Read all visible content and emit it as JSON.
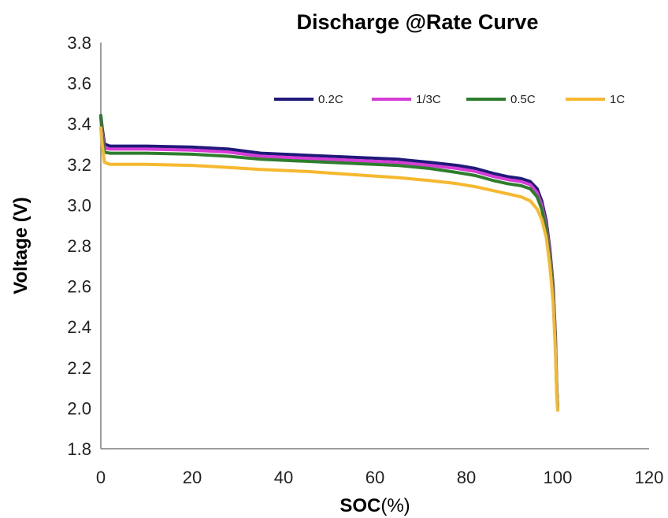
{
  "chart_data": {
    "type": "line",
    "title": "Discharge @Rate Curve",
    "xlabel_bold": "SOC",
    "xlabel_rest": "(%)",
    "ylabel": "Voltage (V)",
    "xlim": [
      0,
      120
    ],
    "ylim": [
      1.8,
      3.8
    ],
    "xticks": [
      0,
      20,
      40,
      60,
      80,
      100,
      120
    ],
    "yticks": [
      "1.8",
      "2.0",
      "2.2",
      "2.4",
      "2.6",
      "2.8",
      "3.0",
      "3.2",
      "3.4",
      "3.6",
      "3.8"
    ],
    "grid": false,
    "legend_position": "top-right",
    "series": [
      {
        "name": "0.2C",
        "color": "#1f1a7a",
        "points": [
          [
            0,
            3.44
          ],
          [
            0.3,
            3.38
          ],
          [
            0.8,
            3.3
          ],
          [
            2,
            3.29
          ],
          [
            10,
            3.29
          ],
          [
            20,
            3.285
          ],
          [
            28,
            3.275
          ],
          [
            35,
            3.255
          ],
          [
            45,
            3.245
          ],
          [
            55,
            3.235
          ],
          [
            65,
            3.225
          ],
          [
            72,
            3.21
          ],
          [
            78,
            3.195
          ],
          [
            82,
            3.18
          ],
          [
            86,
            3.155
          ],
          [
            89,
            3.14
          ],
          [
            92,
            3.13
          ],
          [
            94,
            3.115
          ],
          [
            95.5,
            3.08
          ],
          [
            96.5,
            3.02
          ],
          [
            97.5,
            2.92
          ],
          [
            98.3,
            2.78
          ],
          [
            99,
            2.6
          ],
          [
            99.5,
            2.35
          ],
          [
            99.8,
            2.1
          ],
          [
            100,
            2.0
          ]
        ]
      },
      {
        "name": "1/3C",
        "color": "#d63dd6",
        "points": [
          [
            0,
            3.43
          ],
          [
            0.3,
            3.36
          ],
          [
            0.8,
            3.28
          ],
          [
            2,
            3.275
          ],
          [
            10,
            3.275
          ],
          [
            20,
            3.27
          ],
          [
            28,
            3.26
          ],
          [
            35,
            3.24
          ],
          [
            45,
            3.23
          ],
          [
            55,
            3.22
          ],
          [
            65,
            3.21
          ],
          [
            72,
            3.195
          ],
          [
            78,
            3.18
          ],
          [
            82,
            3.165
          ],
          [
            86,
            3.14
          ],
          [
            89,
            3.125
          ],
          [
            92,
            3.115
          ],
          [
            94,
            3.1
          ],
          [
            95.5,
            3.06
          ],
          [
            96.5,
            3.0
          ],
          [
            97.5,
            2.9
          ],
          [
            98.3,
            2.76
          ],
          [
            99,
            2.58
          ],
          [
            99.5,
            2.33
          ],
          [
            99.8,
            2.09
          ],
          [
            100,
            2.0
          ]
        ]
      },
      {
        "name": "0.5C",
        "color": "#2e7d2e",
        "points": [
          [
            0,
            3.44
          ],
          [
            0.3,
            3.34
          ],
          [
            0.8,
            3.26
          ],
          [
            2,
            3.255
          ],
          [
            10,
            3.255
          ],
          [
            20,
            3.25
          ],
          [
            28,
            3.24
          ],
          [
            35,
            3.225
          ],
          [
            45,
            3.215
          ],
          [
            55,
            3.205
          ],
          [
            65,
            3.195
          ],
          [
            72,
            3.18
          ],
          [
            78,
            3.16
          ],
          [
            82,
            3.145
          ],
          [
            86,
            3.12
          ],
          [
            89,
            3.105
          ],
          [
            92,
            3.095
          ],
          [
            94,
            3.08
          ],
          [
            95.5,
            3.04
          ],
          [
            96.5,
            2.98
          ],
          [
            97.5,
            2.88
          ],
          [
            98.3,
            2.74
          ],
          [
            99,
            2.56
          ],
          [
            99.5,
            2.31
          ],
          [
            99.8,
            2.08
          ],
          [
            100,
            2.0
          ]
        ]
      },
      {
        "name": "1C",
        "color": "#f5b82e",
        "points": [
          [
            0,
            3.38
          ],
          [
            0.3,
            3.3
          ],
          [
            0.8,
            3.21
          ],
          [
            2,
            3.2
          ],
          [
            10,
            3.2
          ],
          [
            20,
            3.195
          ],
          [
            28,
            3.185
          ],
          [
            35,
            3.175
          ],
          [
            45,
            3.165
          ],
          [
            55,
            3.15
          ],
          [
            65,
            3.135
          ],
          [
            72,
            3.12
          ],
          [
            78,
            3.105
          ],
          [
            82,
            3.09
          ],
          [
            86,
            3.07
          ],
          [
            89,
            3.055
          ],
          [
            92,
            3.04
          ],
          [
            94,
            3.02
          ],
          [
            95.5,
            2.98
          ],
          [
            96.5,
            2.93
          ],
          [
            97.5,
            2.84
          ],
          [
            98.3,
            2.7
          ],
          [
            99,
            2.52
          ],
          [
            99.5,
            2.28
          ],
          [
            99.8,
            2.06
          ],
          [
            100,
            1.99
          ]
        ]
      }
    ]
  }
}
